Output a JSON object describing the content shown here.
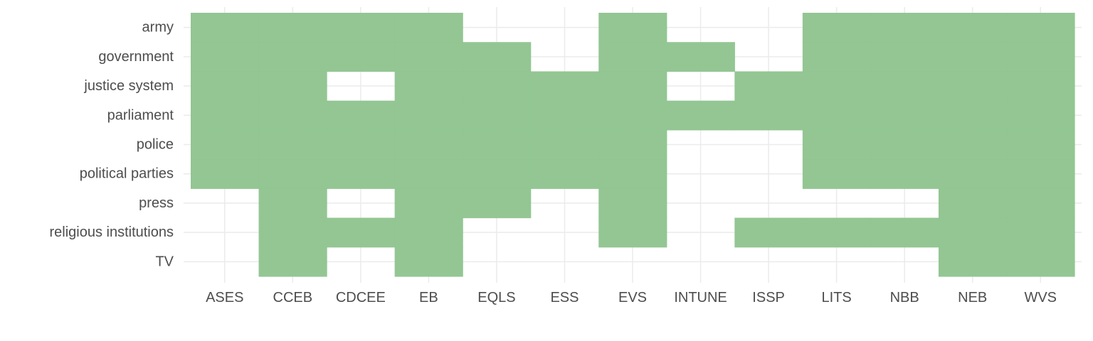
{
  "chart_data": {
    "type": "heatmap",
    "title": "",
    "xlabel": "",
    "ylabel": "",
    "x_categories": [
      "ASES",
      "CCEB",
      "CDCEE",
      "EB",
      "EQLS",
      "ESS",
      "EVS",
      "INTUNE",
      "ISSP",
      "LITS",
      "NBB",
      "NEB",
      "WVS"
    ],
    "y_categories": [
      "army",
      "government",
      "justice system",
      "parliament",
      "police",
      "political parties",
      "press",
      "religious institutions",
      "TV"
    ],
    "presence": [
      [
        1,
        1,
        1,
        1,
        0,
        0,
        1,
        0,
        0,
        1,
        1,
        1,
        1
      ],
      [
        1,
        1,
        1,
        1,
        1,
        0,
        1,
        1,
        0,
        1,
        1,
        1,
        1
      ],
      [
        1,
        1,
        0,
        1,
        1,
        1,
        1,
        0,
        1,
        1,
        1,
        1,
        1
      ],
      [
        1,
        1,
        1,
        1,
        1,
        1,
        1,
        1,
        1,
        1,
        1,
        1,
        1
      ],
      [
        1,
        1,
        1,
        1,
        1,
        1,
        1,
        0,
        0,
        1,
        1,
        1,
        1
      ],
      [
        1,
        1,
        1,
        1,
        1,
        1,
        1,
        0,
        0,
        1,
        1,
        1,
        1
      ],
      [
        0,
        1,
        0,
        1,
        1,
        0,
        1,
        0,
        0,
        0,
        0,
        1,
        1
      ],
      [
        0,
        1,
        1,
        1,
        0,
        0,
        1,
        0,
        1,
        1,
        1,
        1,
        1
      ],
      [
        0,
        1,
        0,
        1,
        0,
        0,
        0,
        0,
        0,
        0,
        0,
        1,
        1
      ]
    ],
    "fill_color": "#90c490",
    "grid": true,
    "legend": "none"
  }
}
